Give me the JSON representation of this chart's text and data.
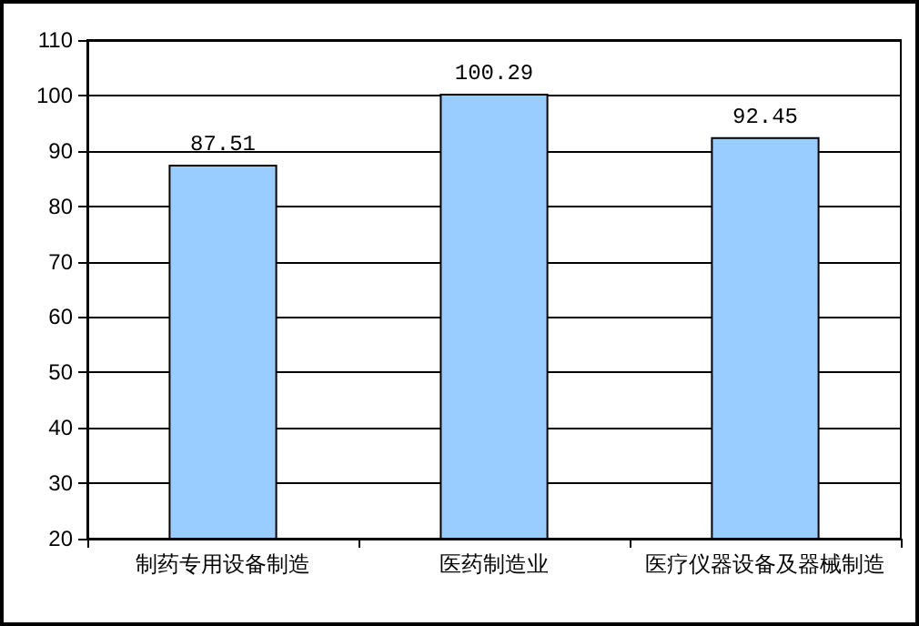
{
  "chart_data": {
    "type": "bar",
    "categories": [
      "制药专用设备制造",
      "医药制造业",
      "医疗仪器设备及器械制造"
    ],
    "values": [
      87.51,
      100.29,
      92.45
    ],
    "color": "#99ccff",
    "ylim": [
      20,
      110
    ],
    "yticks": [
      20,
      30,
      40,
      50,
      60,
      70,
      80,
      90,
      100,
      110
    ],
    "grid": "y",
    "data_labels": true
  }
}
